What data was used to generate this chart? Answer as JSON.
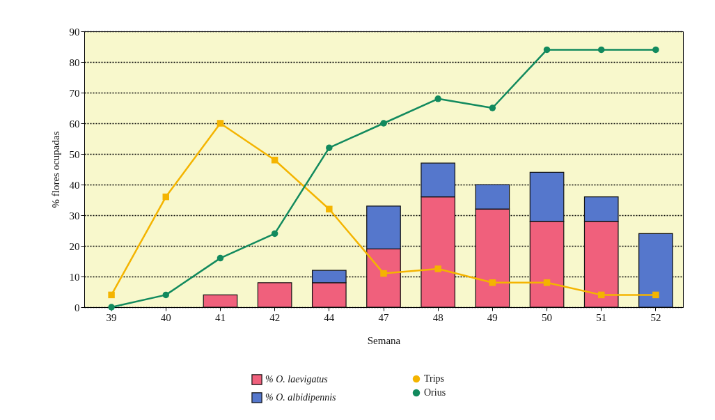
{
  "chart_data": {
    "type": "bar",
    "xlabel": "Semana",
    "ylabel": "% flores ocupadas",
    "categories": [
      "39",
      "40",
      "41",
      "42",
      "44",
      "47",
      "48",
      "49",
      "50",
      "51",
      "52"
    ],
    "stacked": true,
    "ylim": [
      0,
      90
    ],
    "yticks": [
      0,
      10,
      20,
      30,
      40,
      50,
      60,
      70,
      80,
      90
    ],
    "grid": "y",
    "legend": "bottom",
    "series": [
      {
        "name": "% O. laevigatus",
        "color": "#f0607c",
        "values": [
          null,
          null,
          4,
          8,
          8,
          19,
          36,
          32,
          28,
          28,
          null
        ]
      },
      {
        "name": "% O. albidipennis",
        "color": "#5577cc",
        "values": [
          null,
          null,
          null,
          null,
          4,
          14,
          11,
          8,
          16,
          8,
          24
        ]
      },
      {
        "type": "line",
        "name": "Trips",
        "color": "#f4b400",
        "marker": "square",
        "values": [
          4,
          36,
          60,
          48,
          32,
          11,
          12.5,
          8,
          8,
          4,
          4
        ]
      },
      {
        "type": "line",
        "name": "Orius",
        "color": "#128a5e",
        "marker": "circle",
        "values": [
          0,
          4,
          16,
          24,
          52,
          60,
          68,
          65,
          84,
          84,
          84
        ]
      }
    ]
  }
}
